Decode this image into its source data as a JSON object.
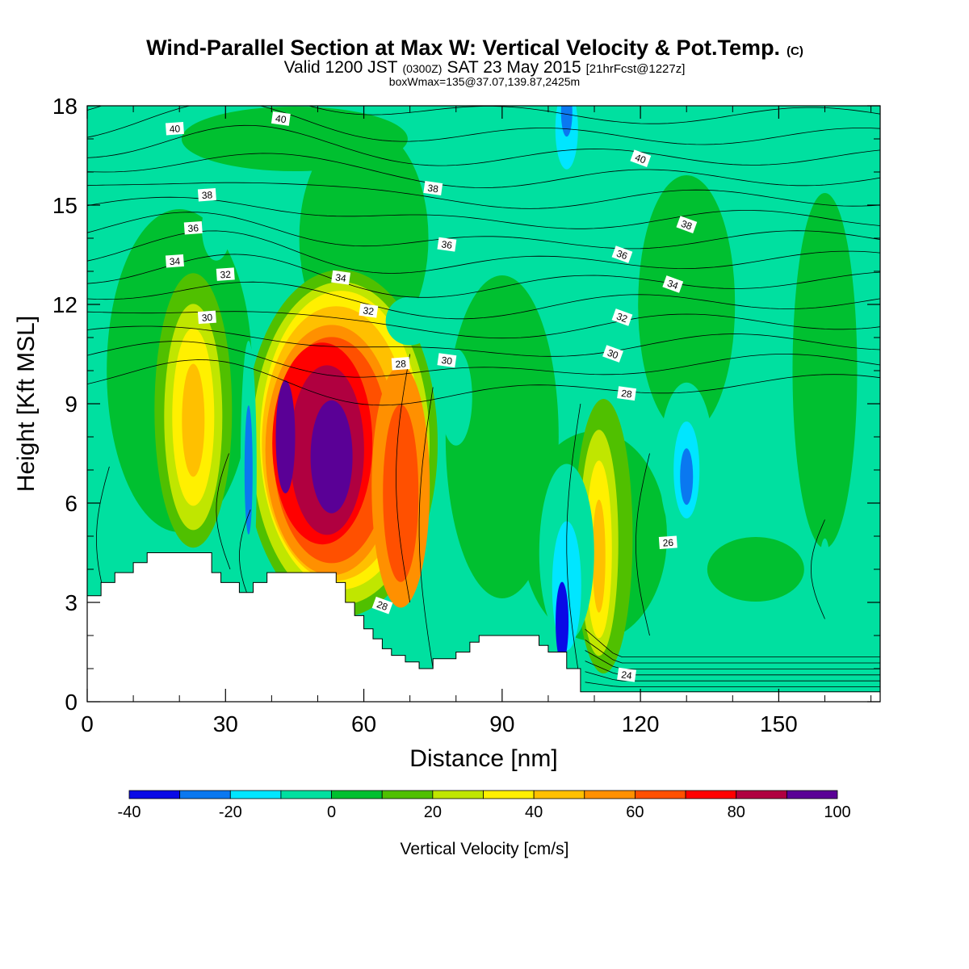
{
  "header": {
    "title": "Wind-Parallel Section at Max W: Vertical Velocity & Pot.Temp.",
    "title_mark": "(C)",
    "valid_a": "Valid 1200 JST",
    "valid_b": "(0300Z)",
    "valid_c": "SAT 23 May 2015",
    "valid_d": "[21hrFcst@1227z]",
    "box_info": "boxWmax=135@37.07,139.87,2425m"
  },
  "chart_data": {
    "type": "heatmap",
    "xlabel": "Distance [nm]",
    "ylabel": "Height [Kft MSL]",
    "xlim": [
      0,
      172
    ],
    "ylim": [
      0,
      18
    ],
    "x_ticks": [
      0,
      30,
      60,
      90,
      120,
      150
    ],
    "y_ticks": [
      0,
      3,
      6,
      9,
      12,
      15,
      18
    ],
    "fill_variable": "Vertical Velocity [cm/s]",
    "colorbar": {
      "title": "Vertical Velocity [cm/s]",
      "levels": [
        -40,
        -30,
        -20,
        -10,
        0,
        10,
        20,
        30,
        40,
        50,
        60,
        70,
        80,
        90,
        100
      ],
      "labels": [
        -40,
        -20,
        0,
        20,
        40,
        60,
        80,
        100
      ],
      "colors": [
        "#0a0ae6",
        "#0a78f0",
        "#00e6ff",
        "#00e0a0",
        "#00c030",
        "#50c000",
        "#c0e600",
        "#fff000",
        "#ffc000",
        "#ff9000",
        "#ff5000",
        "#ff0000",
        "#b00040",
        "#5a0096"
      ]
    },
    "features": [
      {
        "name": "updraft core",
        "x": 52,
        "y": 7.5,
        "w_max": 100
      },
      {
        "name": "updraft",
        "x": 68,
        "y": 6.5,
        "w_max": 70
      },
      {
        "name": "updraft",
        "x": 23,
        "y": 8.5,
        "w_max": 50
      },
      {
        "name": "updraft",
        "x": 111,
        "y": 4.5,
        "w_max": 40
      },
      {
        "name": "downdraft",
        "x": 103,
        "y": 2.3,
        "w_max": -40
      },
      {
        "name": "downdraft",
        "x": 130,
        "y": 7,
        "w_max": -30
      },
      {
        "name": "downdraft",
        "x": 35,
        "y": 7,
        "w_max": -30
      },
      {
        "name": "downdraft",
        "x": 104,
        "y": 17.5,
        "w_max": -30
      }
    ],
    "terrain": [
      [
        0,
        3.2
      ],
      [
        3,
        3.6
      ],
      [
        6,
        3.9
      ],
      [
        10,
        4.2
      ],
      [
        13,
        4.5
      ],
      [
        25,
        4.5
      ],
      [
        27,
        3.9
      ],
      [
        29,
        3.6
      ],
      [
        33,
        3.3
      ],
      [
        36,
        3.6
      ],
      [
        39,
        3.9
      ],
      [
        52,
        3.9
      ],
      [
        54,
        3.6
      ],
      [
        56,
        3.0
      ],
      [
        58,
        2.6
      ],
      [
        60,
        2.2
      ],
      [
        62,
        1.9
      ],
      [
        64,
        1.6
      ],
      [
        66,
        1.4
      ],
      [
        69,
        1.2
      ],
      [
        72,
        1.0
      ],
      [
        75,
        1.3
      ],
      [
        80,
        1.5
      ],
      [
        83,
        1.8
      ],
      [
        85,
        2.0
      ],
      [
        96,
        2.0
      ],
      [
        98,
        1.7
      ],
      [
        100,
        1.5
      ],
      [
        104,
        1.0
      ],
      [
        107,
        0.3
      ],
      [
        172,
        0.3
      ]
    ],
    "theta_contours": {
      "variable": "Pot.Temp.",
      "labels": [
        {
          "text": "40",
          "x": 19,
          "y": 17.3
        },
        {
          "text": "40",
          "x": 42,
          "y": 17.6
        },
        {
          "text": "40",
          "x": 120,
          "y": 16.4
        },
        {
          "text": "38",
          "x": 26,
          "y": 15.3
        },
        {
          "text": "38",
          "x": 75,
          "y": 15.5
        },
        {
          "text": "38",
          "x": 130,
          "y": 14.4
        },
        {
          "text": "36",
          "x": 23,
          "y": 14.3
        },
        {
          "text": "36",
          "x": 78,
          "y": 13.8
        },
        {
          "text": "36",
          "x": 116,
          "y": 13.5
        },
        {
          "text": "34",
          "x": 19,
          "y": 13.3
        },
        {
          "text": "34",
          "x": 55,
          "y": 12.8
        },
        {
          "text": "34",
          "x": 127,
          "y": 12.6
        },
        {
          "text": "32",
          "x": 30,
          "y": 12.9
        },
        {
          "text": "32",
          "x": 61,
          "y": 11.8
        },
        {
          "text": "32",
          "x": 116,
          "y": 11.6
        },
        {
          "text": "30",
          "x": 26,
          "y": 11.6
        },
        {
          "text": "30",
          "x": 78,
          "y": 10.3
        },
        {
          "text": "30",
          "x": 114,
          "y": 10.5
        },
        {
          "text": "28",
          "x": 68,
          "y": 10.2
        },
        {
          "text": "28",
          "x": 117,
          "y": 9.3
        },
        {
          "text": "28",
          "x": 64,
          "y": 2.9
        },
        {
          "text": "26",
          "x": 126,
          "y": 4.8
        },
        {
          "text": "24",
          "x": 117,
          "y": 0.8
        }
      ]
    }
  }
}
